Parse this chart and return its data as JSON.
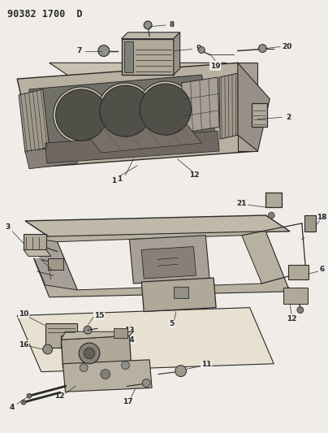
{
  "title": "90382 1700  D",
  "bg_color": "#f0ede8",
  "line_color": "#2a2a2a",
  "fig_width": 4.04,
  "fig_height": 5.33,
  "dpi": 100
}
